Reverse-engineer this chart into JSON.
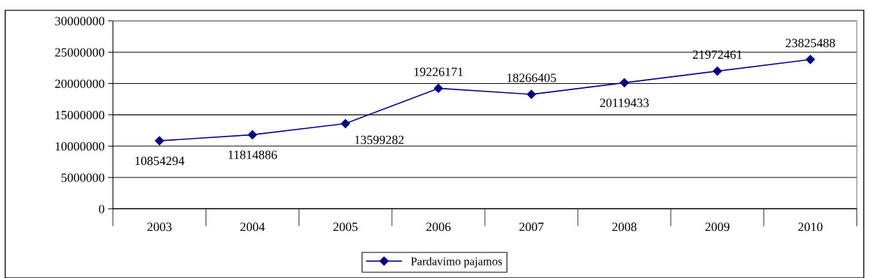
{
  "chart_data": {
    "type": "line",
    "categories": [
      "2003",
      "2004",
      "2005",
      "2006",
      "2007",
      "2008",
      "2009",
      "2010"
    ],
    "series": [
      {
        "name": "Pardavimo pajamos",
        "color": "#000080",
        "values": [
          10854294,
          11814886,
          13599282,
          19226171,
          18266405,
          20119433,
          21972461,
          23825488
        ]
      }
    ],
    "ylim": [
      0,
      30000000
    ],
    "yticks": [
      0,
      5000000,
      10000000,
      15000000,
      20000000,
      25000000,
      30000000
    ],
    "grid": "y",
    "legend": "bottom",
    "marker": "diamond",
    "line_style": "solid",
    "data_labels": true
  }
}
